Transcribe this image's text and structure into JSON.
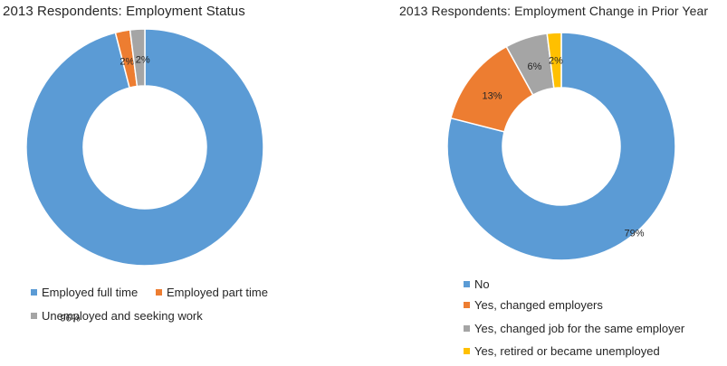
{
  "chart_data": [
    {
      "type": "pie",
      "title": "2013 Respondents: Employment Status",
      "categories": [
        "Employed full time",
        "Employed part time",
        "Unemployed and seeking work"
      ],
      "values": [
        96,
        2,
        2
      ],
      "data_labels": [
        "96%",
        "2%",
        "2%"
      ],
      "colors": [
        "#5b9bd5",
        "#ed7d31",
        "#a5a5a5"
      ],
      "donut": true,
      "legend_position": "bottom"
    },
    {
      "type": "pie",
      "title": "2013 Respondents: Employment Change in Prior Year",
      "categories": [
        "No",
        "Yes, changed employers",
        "Yes, changed job for the same employer",
        "Yes, retired or became unemployed"
      ],
      "values": [
        79,
        13,
        6,
        2
      ],
      "data_labels": [
        "79%",
        "13%",
        "6%",
        "2%"
      ],
      "colors": [
        "#5b9bd5",
        "#ed7d31",
        "#a5a5a5",
        "#ffc000"
      ],
      "donut": true,
      "legend_position": "bottom"
    }
  ]
}
